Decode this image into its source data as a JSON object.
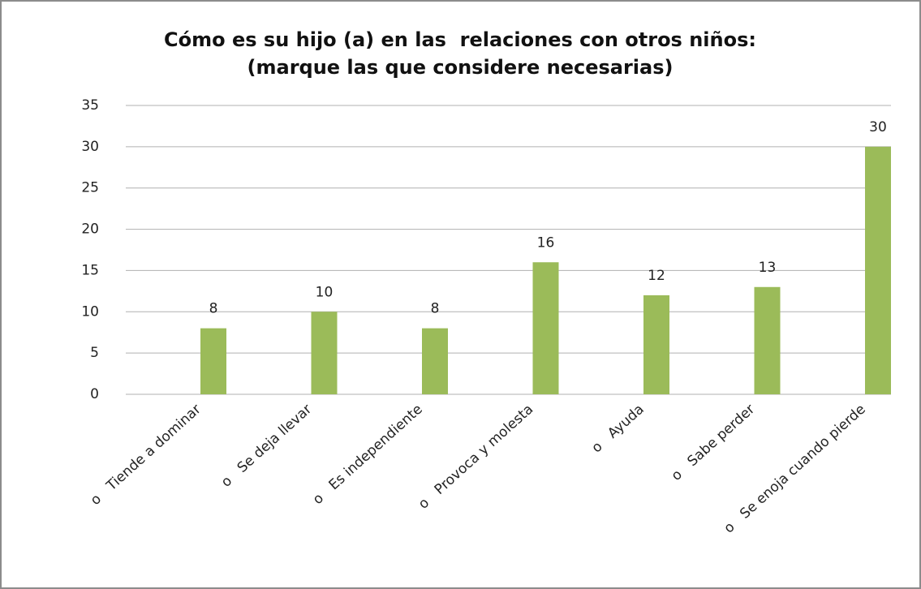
{
  "chart_data": {
    "type": "bar",
    "title": [
      "Cómo es su hijo (a) en las  relaciones con otros niños:",
      "(marque las que considere necesarias)"
    ],
    "categories": [
      "o   Tiende a dominar",
      "o   Se deja llevar",
      "o   Es independiente",
      "o   Provoca y molesta",
      "o   Ayuda",
      "o   Sabe perder",
      "o   Se enoja cuando pierde"
    ],
    "values": [
      8,
      10,
      8,
      16,
      12,
      13,
      30
    ],
    "color": "#9bbb59",
    "ylim": [
      0,
      35
    ],
    "yticks": [
      0,
      5,
      10,
      15,
      20,
      25,
      30,
      35
    ],
    "grid": true
  }
}
